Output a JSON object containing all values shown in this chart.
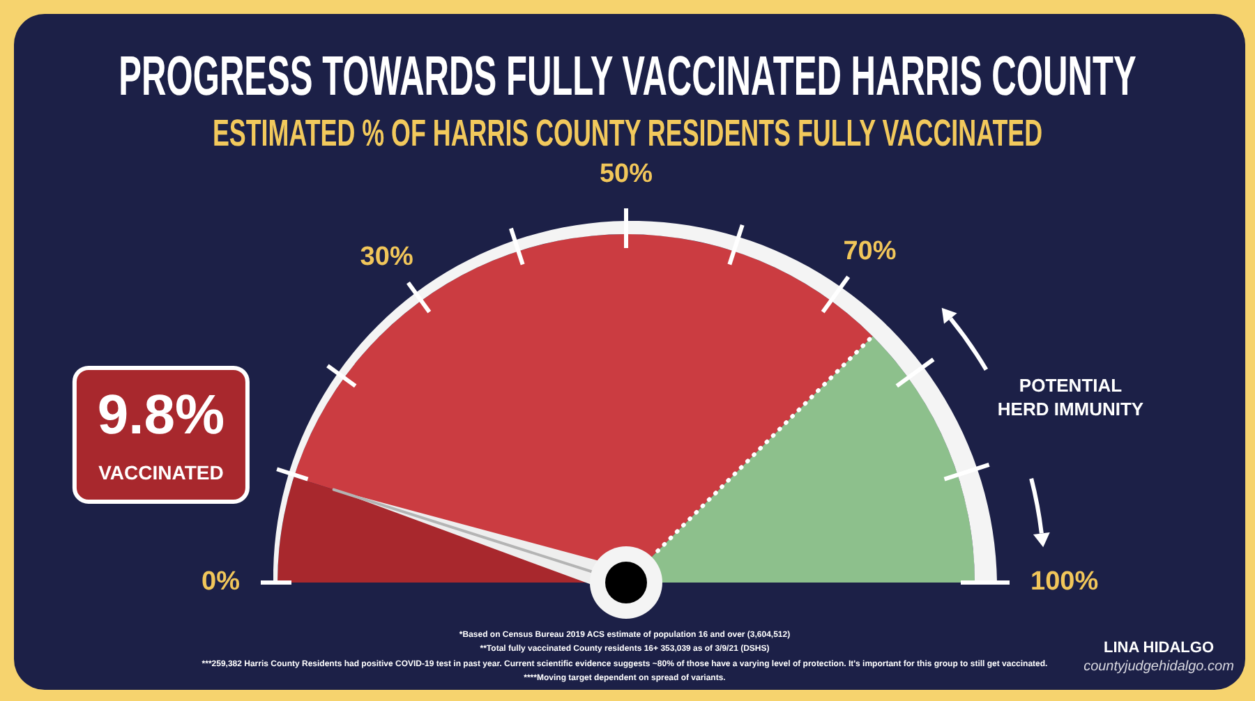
{
  "chart_data": {
    "type": "pie",
    "title": "PROGRESS TOWARDS FULLY VACCINATED HARRIS COUNTY",
    "subtitle": "ESTIMATED % OF HARRIS COUNTY RESIDENTS FULLY VACCINATED",
    "categories": [
      "VACCINATED",
      null,
      "POTENTIAL HERD IMMUNITY"
    ],
    "values": [
      9.8,
      65.2,
      25
    ],
    "colors": [
      "#a8282d",
      "#cb3c41",
      "#8dc08c"
    ],
    "value_labels": [
      "9.8%",
      null,
      null
    ],
    "needle": "VACCINATED",
    "annotations": [
      "0%",
      "30%",
      "50%",
      "70%",
      "100%",
      "*Based on Census Bureau 2019 ACS estimate of population 16 and over (3,604,512)",
      "**Total fully vaccinated County residents 16+ 353,039 as of 3/9/21 (DSHS)",
      "***259,382 Harris County Residents had positive COVID-19 test in past year. Current scientific evidence suggests ~80% of those have a varying level of protection. It's important for this group to still get vaccinated.",
      "****Moving target dependent on spread of variants.",
      "LINA HIDALGO",
      "countyjudgehidalgo.com"
    ]
  }
}
